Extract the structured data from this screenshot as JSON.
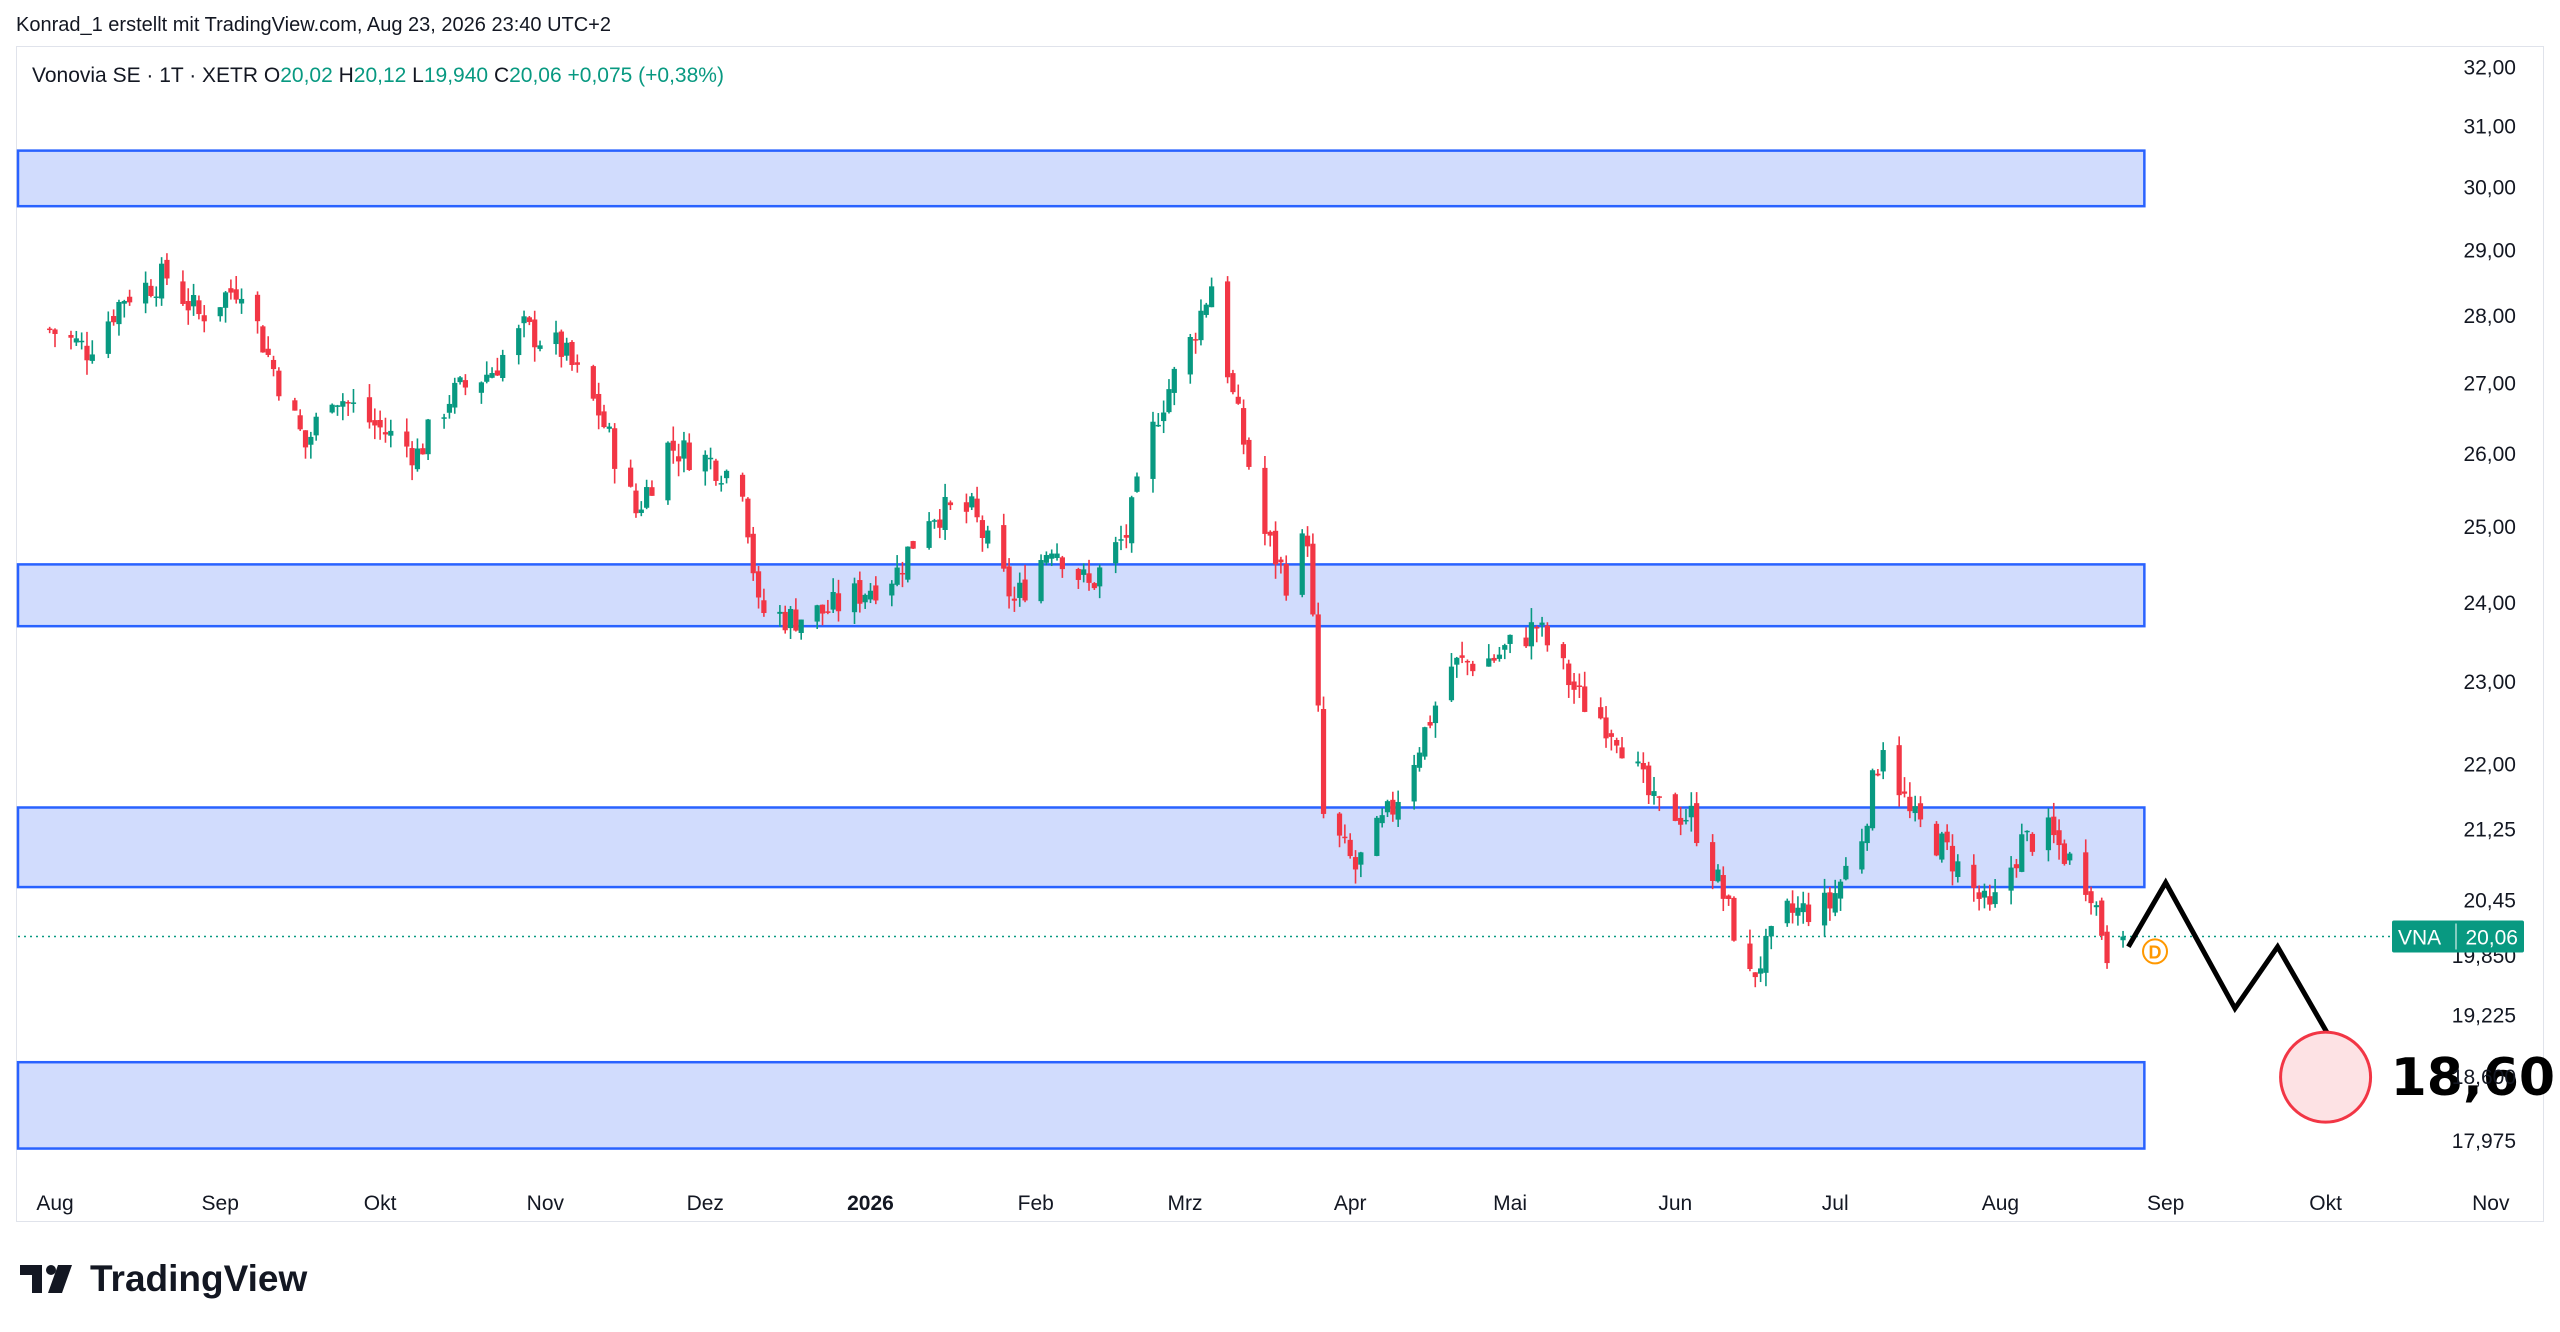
{
  "credit": "Konrad_1 erstellt mit TradingView.com, Aug 23, 2026 23:40 UTC+2",
  "legend": {
    "symbol": "Vonovia SE · 1T · XETR",
    "o_label": "O",
    "o_value": "20,02",
    "h_label": "H",
    "h_value": "20,12",
    "l_label": "L",
    "l_value": "19,940",
    "c_label": "C",
    "c_value": "20,06",
    "change": "+0,075 (+0,38%)"
  },
  "price_tag": {
    "ticker": "VNA",
    "price": "20,06"
  },
  "target_label": "18,60",
  "dividend_marker": "D",
  "brand": "TradingView",
  "colors": {
    "up": "#089981",
    "down": "#f23645",
    "zone_fill": "#d1dcfd",
    "zone_border": "#2962ff",
    "target_fill": "#fde2e4",
    "target_border": "#f23645",
    "dividend": "#ff9800"
  },
  "chart_data": {
    "type": "candlestick",
    "title": "",
    "xlabel": "",
    "ylabel": "",
    "ylim": [
      17.6,
      32.3
    ],
    "y_scale": "log",
    "y_ticks": [
      "32,00",
      "31,00",
      "30,00",
      "29,00",
      "28,00",
      "27,00",
      "26,00",
      "25,00",
      "24,00",
      "23,00",
      "22,00",
      "21,25",
      "20,45",
      "19,850",
      "19,225",
      "18,600",
      "17,975"
    ],
    "y_tick_values": [
      32.0,
      31.0,
      30.0,
      29.0,
      28.0,
      27.0,
      26.0,
      25.0,
      24.0,
      23.0,
      22.0,
      21.25,
      20.45,
      19.85,
      19.225,
      18.6,
      17.975
    ],
    "x_ticks": [
      "Aug",
      "Sep",
      "Okt",
      "Nov",
      "Dez",
      "2026",
      "Feb",
      "Mrz",
      "Apr",
      "Mai",
      "Jun",
      "Jul",
      "Aug",
      "Sep",
      "Okt",
      "Nov"
    ],
    "x_tick_dates": [
      "2025-08-01",
      "2025-09-01",
      "2025-10-01",
      "2025-11-01",
      "2025-12-01",
      "2026-01-01",
      "2026-02-01",
      "2026-03-01",
      "2026-04-01",
      "2026-05-01",
      "2026-06-01",
      "2026-07-01",
      "2026-08-01",
      "2026-09-01",
      "2026-10-01",
      "2026-11-01"
    ],
    "x_tick_bold": [
      false,
      false,
      false,
      false,
      false,
      true,
      false,
      false,
      false,
      false,
      false,
      false,
      false,
      false,
      false,
      false
    ],
    "zones": [
      {
        "low": 29.7,
        "high": 30.6
      },
      {
        "low": 23.7,
        "high": 24.5
      },
      {
        "low": 20.6,
        "high": 21.5
      },
      {
        "low": 17.9,
        "high": 18.75
      }
    ],
    "last_close": 20.06,
    "projection": [
      {
        "date": "2026-08-25",
        "value": 19.95
      },
      {
        "date": "2026-09-01",
        "value": 20.65
      },
      {
        "date": "2026-09-14",
        "value": 19.3
      },
      {
        "date": "2026-09-22",
        "value": 19.95
      },
      {
        "date": "2026-10-05",
        "value": 18.7
      }
    ],
    "target": {
      "date": "2026-10-01",
      "value": 18.6
    },
    "dividend": {
      "date": "2026-08-30",
      "value": 19.9
    },
    "key_points": [
      {
        "date": "2025-07-31",
        "value": 27.8
      },
      {
        "date": "2025-08-07",
        "value": 27.5
      },
      {
        "date": "2025-08-14",
        "value": 28.3
      },
      {
        "date": "2025-08-22",
        "value": 28.6
      },
      {
        "date": "2025-08-28",
        "value": 28.0
      },
      {
        "date": "2025-09-05",
        "value": 28.5
      },
      {
        "date": "2025-09-10",
        "value": 27.4
      },
      {
        "date": "2025-09-17",
        "value": 26.1
      },
      {
        "date": "2025-09-22",
        "value": 26.9
      },
      {
        "date": "2025-09-30",
        "value": 26.4
      },
      {
        "date": "2025-10-08",
        "value": 26.0
      },
      {
        "date": "2025-10-14",
        "value": 26.8
      },
      {
        "date": "2025-10-22",
        "value": 27.2
      },
      {
        "date": "2025-10-28",
        "value": 27.8
      },
      {
        "date": "2025-11-04",
        "value": 27.5
      },
      {
        "date": "2025-11-11",
        "value": 26.6
      },
      {
        "date": "2025-11-18",
        "value": 25.2
      },
      {
        "date": "2025-11-24",
        "value": 26.1
      },
      {
        "date": "2025-12-02",
        "value": 25.9
      },
      {
        "date": "2025-12-08",
        "value": 25.6
      },
      {
        "date": "2025-12-11",
        "value": 23.9
      },
      {
        "date": "2025-12-17",
        "value": 23.8
      },
      {
        "date": "2025-12-24",
        "value": 23.9
      },
      {
        "date": "2026-01-06",
        "value": 24.4
      },
      {
        "date": "2026-01-12",
        "value": 25.2
      },
      {
        "date": "2026-01-20",
        "value": 25.2
      },
      {
        "date": "2026-01-28",
        "value": 24.0
      },
      {
        "date": "2026-02-04",
        "value": 24.8
      },
      {
        "date": "2026-02-11",
        "value": 24.2
      },
      {
        "date": "2026-02-18",
        "value": 24.9
      },
      {
        "date": "2026-02-24",
        "value": 26.6
      },
      {
        "date": "2026-03-02",
        "value": 27.6
      },
      {
        "date": "2026-03-06",
        "value": 28.5
      },
      {
        "date": "2026-03-10",
        "value": 26.8
      },
      {
        "date": "2026-03-16",
        "value": 24.9
      },
      {
        "date": "2026-03-20",
        "value": 24.3
      },
      {
        "date": "2026-03-24",
        "value": 24.9
      },
      {
        "date": "2026-03-27",
        "value": 21.4
      },
      {
        "date": "2026-04-02",
        "value": 20.8
      },
      {
        "date": "2026-04-09",
        "value": 21.5
      },
      {
        "date": "2026-04-15",
        "value": 22.4
      },
      {
        "date": "2026-04-20",
        "value": 23.2
      },
      {
        "date": "2026-04-28",
        "value": 23.3
      },
      {
        "date": "2026-05-06",
        "value": 23.7
      },
      {
        "date": "2026-05-14",
        "value": 22.8
      },
      {
        "date": "2026-05-21",
        "value": 22.4
      },
      {
        "date": "2026-05-28",
        "value": 21.5
      },
      {
        "date": "2026-06-04",
        "value": 21.4
      },
      {
        "date": "2026-06-10",
        "value": 20.5
      },
      {
        "date": "2026-06-15",
        "value": 19.6
      },
      {
        "date": "2026-06-22",
        "value": 20.3
      },
      {
        "date": "2026-06-30",
        "value": 20.4
      },
      {
        "date": "2026-07-06",
        "value": 21.2
      },
      {
        "date": "2026-07-10",
        "value": 22.3
      },
      {
        "date": "2026-07-15",
        "value": 21.4
      },
      {
        "date": "2026-07-22",
        "value": 21.0
      },
      {
        "date": "2026-07-30",
        "value": 20.3
      },
      {
        "date": "2026-08-05",
        "value": 21.1
      },
      {
        "date": "2026-08-10",
        "value": 21.2
      },
      {
        "date": "2026-08-14",
        "value": 20.9
      },
      {
        "date": "2026-08-18",
        "value": 20.6
      },
      {
        "date": "2026-08-21",
        "value": 19.9
      },
      {
        "date": "2026-08-24",
        "value": 20.06
      }
    ]
  }
}
